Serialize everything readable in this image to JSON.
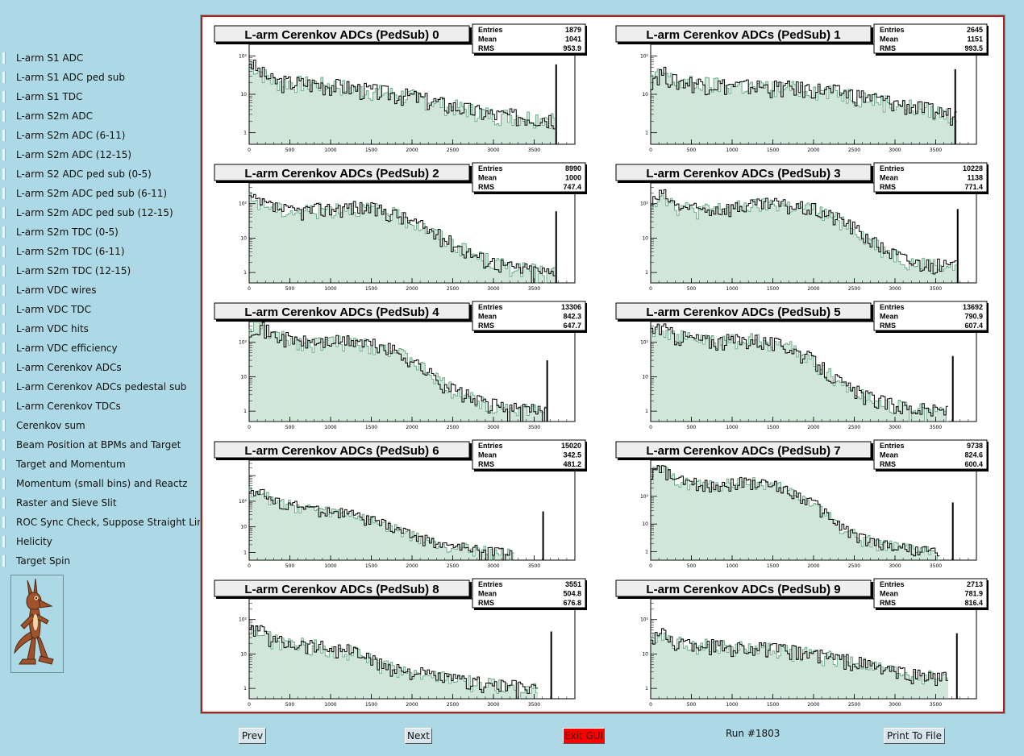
{
  "sidebar": {
    "items": [
      {
        "label": "L-arm S1 ADC"
      },
      {
        "label": "L-arm S1 ADC ped sub"
      },
      {
        "label": "L-arm S1 TDC"
      },
      {
        "label": "L-arm S2m ADC"
      },
      {
        "label": "L-arm S2m ADC (6-11)"
      },
      {
        "label": "L-arm S2m ADC (12-15)"
      },
      {
        "label": "L-arm S2 ADC ped sub (0-5)"
      },
      {
        "label": "L-arm S2m ADC ped sub (6-11)"
      },
      {
        "label": "L-arm S2m ADC ped sub (12-15)"
      },
      {
        "label": "L-arm S2m TDC (0-5)"
      },
      {
        "label": "L-arm S2m TDC (6-11)"
      },
      {
        "label": "L-arm S2m TDC (12-15)"
      },
      {
        "label": "L-arm VDC wires"
      },
      {
        "label": "L-arm VDC TDC"
      },
      {
        "label": "L-arm VDC hits"
      },
      {
        "label": "L-arm VDC efficiency"
      },
      {
        "label": "L-arm Cerenkov ADCs"
      },
      {
        "label": "L-arm Cerenkov ADCs pedestal sub"
      },
      {
        "label": "L-arm Cerenkov TDCs"
      },
      {
        "label": "Cerenkov sum"
      },
      {
        "label": "Beam Position at BPMs and Target"
      },
      {
        "label": "Target and Momentum"
      },
      {
        "label": "Momentum (small bins) and Reactz"
      },
      {
        "label": "Raster and Sieve Slit"
      },
      {
        "label": "ROC Sync Check, Suppose Straight Lines"
      },
      {
        "label": "Helicity"
      },
      {
        "label": "Target Spin"
      }
    ],
    "active_index": 24,
    "mascot_icon": "coyote-mascot-icon"
  },
  "toolbar": {
    "prev_label": "Prev",
    "next_label": "Next",
    "exit_label": "Exit GUI",
    "run_label": "Run #1803",
    "print_label": "Print To File"
  },
  "stats_labels": {
    "entries": "Entries",
    "mean": "Mean",
    "rms": "RMS"
  },
  "colors": {
    "hist_line": "#000000",
    "hist_fill": "#2e8b57",
    "frame": "#c01a1a",
    "background": "#add8e6"
  },
  "chart_data": [
    {
      "type": "bar",
      "title": "L-arm Cerenkov ADCs (PedSub) 0",
      "entries": "1879",
      "mean": "1041",
      "rms": "953.9",
      "x_ticks": [
        "0",
        "500",
        "1000",
        "1500",
        "2000",
        "2500",
        "3000",
        "3500"
      ],
      "y_ticks": [
        "1",
        "10",
        "10²"
      ],
      "xlim": [
        0,
        4000
      ],
      "ylim": [
        0.5,
        200
      ],
      "yscale": "log",
      "profile": [
        [
          0,
          80
        ],
        [
          100,
          45
        ],
        [
          300,
          22
        ],
        [
          1000,
          18
        ],
        [
          2000,
          9
        ],
        [
          2500,
          5
        ],
        [
          3000,
          3
        ],
        [
          3700,
          2.5
        ]
      ],
      "spike": {
        "x": 3760,
        "y": 60
      }
    },
    {
      "type": "bar",
      "title": "L-arm Cerenkov ADCs (PedSub) 1",
      "entries": "2645",
      "mean": "1151",
      "rms": "993.5",
      "x_ticks": [
        "0",
        "500",
        "1000",
        "1500",
        "2000",
        "2500",
        "3000",
        "3500"
      ],
      "y_ticks": [
        "1",
        "10",
        "10²"
      ],
      "xlim": [
        0,
        4000
      ],
      "ylim": [
        0.5,
        200
      ],
      "yscale": "log",
      "profile": [
        [
          0,
          25
        ],
        [
          150,
          38
        ],
        [
          300,
          22
        ],
        [
          1000,
          17
        ],
        [
          2000,
          14
        ],
        [
          2500,
          10
        ],
        [
          3000,
          6
        ],
        [
          3700,
          3
        ]
      ],
      "spike": {
        "x": 3730,
        "y": 45
      }
    },
    {
      "type": "bar",
      "title": "L-arm Cerenkov ADCs (PedSub) 2",
      "entries": "8990",
      "mean": "1000",
      "rms": "747.4",
      "x_ticks": [
        "0",
        "500",
        "1000",
        "1500",
        "2000",
        "2500",
        "3000",
        "3500"
      ],
      "y_ticks": [
        "1",
        "10",
        "10²"
      ],
      "xlim": [
        0,
        4000
      ],
      "ylim": [
        0.5,
        400
      ],
      "yscale": "log",
      "profile": [
        [
          0,
          150
        ],
        [
          150,
          100
        ],
        [
          500,
          60
        ],
        [
          1300,
          85
        ],
        [
          1700,
          60
        ],
        [
          2000,
          32
        ],
        [
          2400,
          10
        ],
        [
          2800,
          3
        ],
        [
          3200,
          1.5
        ],
        [
          3700,
          1
        ]
      ],
      "spike": {
        "x": 3760,
        "y": 60
      }
    },
    {
      "type": "bar",
      "title": "L-arm Cerenkov ADCs (PedSub) 3",
      "entries": "10228",
      "mean": "1138",
      "rms": "771.4",
      "x_ticks": [
        "0",
        "500",
        "1000",
        "1500",
        "2000",
        "2500",
        "3000",
        "3500"
      ],
      "y_ticks": [
        "1",
        "10",
        "10²"
      ],
      "xlim": [
        0,
        4000
      ],
      "ylim": [
        0.5,
        400
      ],
      "yscale": "log",
      "profile": [
        [
          0,
          100
        ],
        [
          150,
          200
        ],
        [
          300,
          90
        ],
        [
          600,
          65
        ],
        [
          1500,
          100
        ],
        [
          2000,
          70
        ],
        [
          2400,
          30
        ],
        [
          2800,
          6
        ],
        [
          3200,
          2
        ],
        [
          3700,
          1.5
        ]
      ],
      "spike": {
        "x": 3760,
        "y": 70
      }
    },
    {
      "type": "bar",
      "title": "L-arm Cerenkov ADCs (PedSub) 4",
      "entries": "13306",
      "mean": "842.3",
      "rms": "647.7",
      "x_ticks": [
        "0",
        "500",
        "1000",
        "1500",
        "2000",
        "2500",
        "3000",
        "3500"
      ],
      "y_ticks": [
        "1",
        "10",
        "10²"
      ],
      "xlim": [
        0,
        4000
      ],
      "ylim": [
        0.5,
        400
      ],
      "yscale": "log",
      "profile": [
        [
          0,
          250
        ],
        [
          100,
          350
        ],
        [
          300,
          160
        ],
        [
          700,
          100
        ],
        [
          1300,
          110
        ],
        [
          1700,
          70
        ],
        [
          2000,
          30
        ],
        [
          2400,
          6
        ],
        [
          2800,
          2
        ],
        [
          3200,
          1.2
        ],
        [
          3600,
          1
        ]
      ],
      "spike": {
        "x": 3650,
        "y": 30
      }
    },
    {
      "type": "bar",
      "title": "L-arm Cerenkov ADCs (PedSub) 5",
      "entries": "13692",
      "mean": "790.9",
      "rms": "607.4",
      "x_ticks": [
        "0",
        "500",
        "1000",
        "1500",
        "2000",
        "2500",
        "3000",
        "3500"
      ],
      "y_ticks": [
        "1",
        "10",
        "10²"
      ],
      "xlim": [
        0,
        4000
      ],
      "ylim": [
        0.5,
        400
      ],
      "yscale": "log",
      "profile": [
        [
          0,
          200
        ],
        [
          100,
          300
        ],
        [
          300,
          160
        ],
        [
          700,
          110
        ],
        [
          1300,
          120
        ],
        [
          1700,
          75
        ],
        [
          2000,
          30
        ],
        [
          2400,
          5
        ],
        [
          2800,
          2
        ],
        [
          3200,
          1.2
        ],
        [
          3600,
          1
        ]
      ],
      "spike": {
        "x": 3700,
        "y": 40
      }
    },
    {
      "type": "bar",
      "title": "L-arm Cerenkov ADCs (PedSub) 6",
      "entries": "15020",
      "mean": "342.5",
      "rms": "481.2",
      "x_ticks": [
        "0",
        "500",
        "1000",
        "1500",
        "2000",
        "2500",
        "3000",
        "3500"
      ],
      "y_ticks": [
        "1",
        "10",
        "10²"
      ],
      "xlim": [
        0,
        4000
      ],
      "ylim": [
        0.5,
        4000
      ],
      "yscale": "log",
      "profile": [
        [
          0,
          250
        ],
        [
          100,
          300
        ],
        [
          300,
          100
        ],
        [
          800,
          50
        ],
        [
          1200,
          35
        ],
        [
          1600,
          15
        ],
        [
          2000,
          5
        ],
        [
          2400,
          2
        ],
        [
          2800,
          1.3
        ],
        [
          3200,
          1
        ]
      ],
      "spike": {
        "x": 3600,
        "y": 40
      }
    },
    {
      "type": "bar",
      "title": "L-arm Cerenkov ADCs (PedSub) 7",
      "entries": "9738",
      "mean": "824.6",
      "rms": "600.4",
      "x_ticks": [
        "0",
        "500",
        "1000",
        "1500",
        "2000",
        "2500",
        "3000",
        "3500"
      ],
      "y_ticks": [
        "1",
        "10",
        "10²"
      ],
      "xlim": [
        0,
        4000
      ],
      "ylim": [
        0.5,
        2000
      ],
      "yscale": "log",
      "profile": [
        [
          0,
          700
        ],
        [
          150,
          1000
        ],
        [
          300,
          400
        ],
        [
          700,
          250
        ],
        [
          1200,
          350
        ],
        [
          1600,
          220
        ],
        [
          2000,
          60
        ],
        [
          2300,
          10
        ],
        [
          2600,
          3
        ],
        [
          3000,
          1.5
        ],
        [
          3500,
          1
        ]
      ],
      "spike": {
        "x": 3700,
        "y": 60
      }
    },
    {
      "type": "bar",
      "title": "L-arm Cerenkov ADCs (PedSub) 8",
      "entries": "3551",
      "mean": "504.8",
      "rms": "676.8",
      "x_ticks": [
        "0",
        "500",
        "1000",
        "1500",
        "2000",
        "2500",
        "3000",
        "3500"
      ],
      "y_ticks": [
        "1",
        "10",
        "10²"
      ],
      "xlim": [
        0,
        4000
      ],
      "ylim": [
        0.5,
        400
      ],
      "yscale": "log",
      "profile": [
        [
          0,
          40
        ],
        [
          100,
          60
        ],
        [
          300,
          25
        ],
        [
          800,
          18
        ],
        [
          1300,
          12
        ],
        [
          1600,
          5
        ],
        [
          2000,
          3
        ],
        [
          2500,
          1.8
        ],
        [
          3000,
          1.3
        ],
        [
          3500,
          1
        ]
      ],
      "spike": {
        "x": 3700,
        "y": 45
      }
    },
    {
      "type": "bar",
      "title": "L-arm Cerenkov ADCs (PedSub) 9",
      "entries": "2713",
      "mean": "781.9",
      "rms": "816.4",
      "x_ticks": [
        "0",
        "500",
        "1000",
        "1500",
        "2000",
        "2500",
        "3000",
        "3500"
      ],
      "y_ticks": [
        "1",
        "10",
        "10²"
      ],
      "xlim": [
        0,
        4000
      ],
      "ylim": [
        0.5,
        400
      ],
      "yscale": "log",
      "profile": [
        [
          0,
          25
        ],
        [
          100,
          45
        ],
        [
          300,
          22
        ],
        [
          800,
          18
        ],
        [
          1500,
          14
        ],
        [
          2000,
          10
        ],
        [
          2500,
          6
        ],
        [
          3000,
          3
        ],
        [
          3600,
          2
        ]
      ],
      "spike": {
        "x": 3750,
        "y": 40
      }
    }
  ]
}
